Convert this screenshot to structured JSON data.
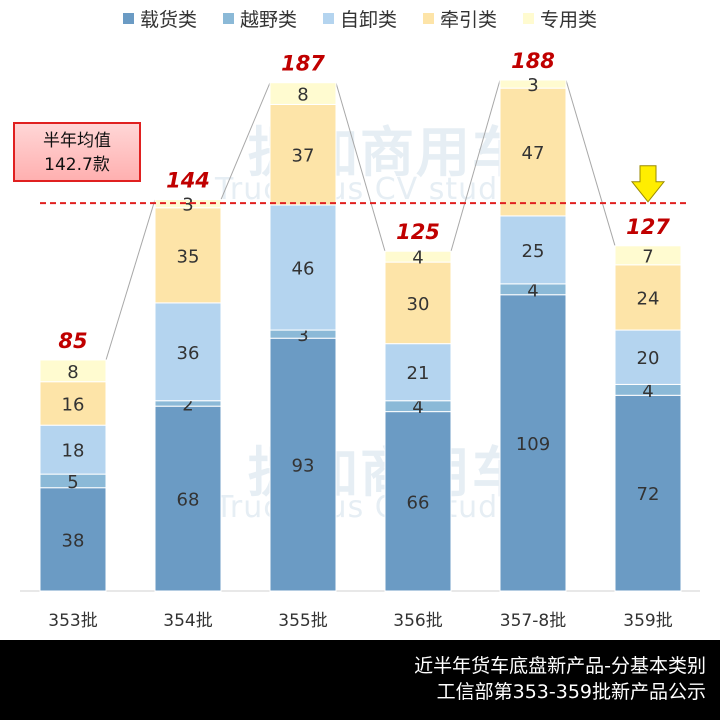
{
  "legend": [
    {
      "label": "载货类",
      "color": "#6b9bc4"
    },
    {
      "label": "越野类",
      "color": "#8bb9d7"
    },
    {
      "label": "自卸类",
      "color": "#b4d4ef"
    },
    {
      "label": "牵引类",
      "color": "#fde4a8"
    },
    {
      "label": "专用类",
      "color": "#fffbd0"
    }
  ],
  "avg_box": {
    "line1": "半年均值",
    "line2": "142.7款"
  },
  "footer": {
    "line1": "近半年货车底盘新产品-分基本类别",
    "line2": "工信部第353-359批新产品公示"
  },
  "watermark": {
    "cn": "提加商用车",
    "en": "TruckPlus CV studio"
  },
  "chart_data": {
    "type": "bar",
    "stacked": true,
    "categories": [
      "353批",
      "354批",
      "355批",
      "356批",
      "357-8批",
      "359批"
    ],
    "series": [
      {
        "name": "载货类",
        "values": [
          38,
          68,
          93,
          66,
          109,
          72
        ]
      },
      {
        "name": "越野类",
        "values": [
          5,
          2,
          3,
          4,
          4,
          4
        ]
      },
      {
        "name": "自卸类",
        "values": [
          18,
          36,
          46,
          21,
          25,
          20
        ]
      },
      {
        "name": "牵引类",
        "values": [
          16,
          35,
          37,
          30,
          47,
          24
        ]
      },
      {
        "name": "专用类",
        "values": [
          8,
          3,
          8,
          4,
          3,
          7
        ]
      }
    ],
    "totals": [
      85,
      144,
      187,
      125,
      188,
      127
    ],
    "average": 142.7,
    "ylim": [
      0,
      188
    ],
    "highlight_category": "359批"
  }
}
